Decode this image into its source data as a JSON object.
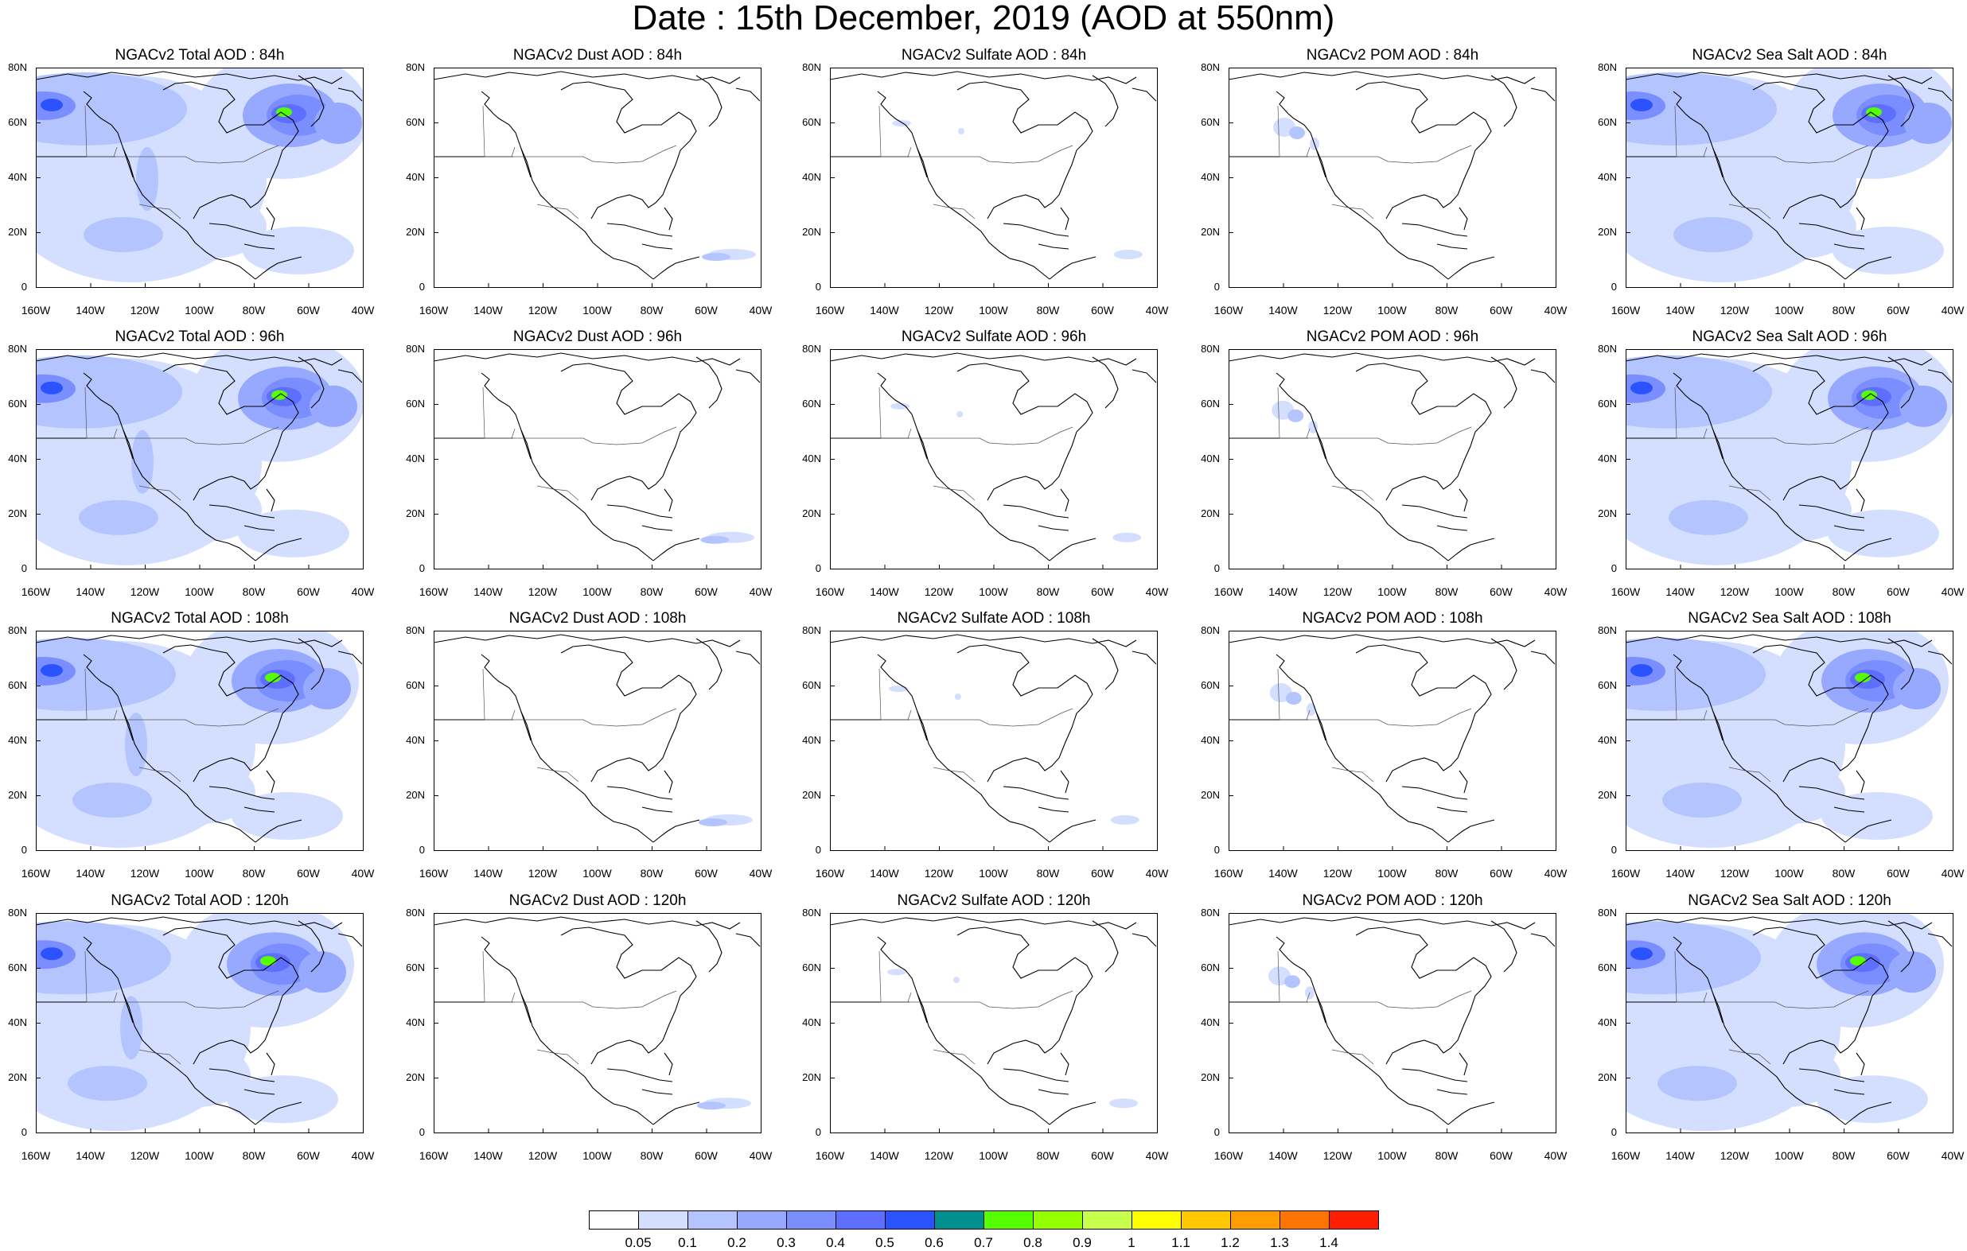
{
  "figure": {
    "title": "Date : 15th December, 2019 (AOD at 550nm)"
  },
  "panels": [
    {
      "title": "NGACv2 Total AOD : 84h",
      "species": "total",
      "hour": "84h"
    },
    {
      "title": "NGACv2 Dust AOD : 84h",
      "species": "dust",
      "hour": "84h"
    },
    {
      "title": "NGACv2 Sulfate AOD : 84h",
      "species": "sulfate",
      "hour": "84h"
    },
    {
      "title": "NGACv2 POM AOD : 84h",
      "species": "pom",
      "hour": "84h"
    },
    {
      "title": "NGACv2 Sea Salt AOD : 84h",
      "species": "seasalt",
      "hour": "84h"
    },
    {
      "title": "NGACv2 Total AOD : 96h",
      "species": "total",
      "hour": "96h"
    },
    {
      "title": "NGACv2 Dust AOD : 96h",
      "species": "dust",
      "hour": "96h"
    },
    {
      "title": "NGACv2 Sulfate AOD : 96h",
      "species": "sulfate",
      "hour": "96h"
    },
    {
      "title": "NGACv2 POM AOD : 96h",
      "species": "pom",
      "hour": "96h"
    },
    {
      "title": "NGACv2 Sea Salt AOD : 96h",
      "species": "seasalt",
      "hour": "96h"
    },
    {
      "title": "NGACv2 Total AOD : 108h",
      "species": "total",
      "hour": "108h"
    },
    {
      "title": "NGACv2 Dust AOD : 108h",
      "species": "dust",
      "hour": "108h"
    },
    {
      "title": "NGACv2 Sulfate AOD : 108h",
      "species": "sulfate",
      "hour": "108h"
    },
    {
      "title": "NGACv2 POM AOD : 108h",
      "species": "pom",
      "hour": "108h"
    },
    {
      "title": "NGACv2 Sea Salt AOD : 108h",
      "species": "seasalt",
      "hour": "108h"
    },
    {
      "title": "NGACv2 Total AOD : 120h",
      "species": "total",
      "hour": "120h"
    },
    {
      "title": "NGACv2 Dust AOD : 120h",
      "species": "dust",
      "hour": "120h"
    },
    {
      "title": "NGACv2 Sulfate AOD : 120h",
      "species": "sulfate",
      "hour": "120h"
    },
    {
      "title": "NGACv2 POM AOD : 120h",
      "species": "pom",
      "hour": "120h"
    },
    {
      "title": "NGACv2 Sea Salt  AOD : 120h",
      "species": "seasalt",
      "hour": "120h"
    }
  ],
  "axes": {
    "y_ticks": [
      "80N",
      "60N",
      "40N",
      "20N",
      "0"
    ],
    "x_ticks": [
      "160W",
      "140W",
      "120W",
      "100W",
      "80W",
      "60W",
      "40W"
    ],
    "lat_range": [
      0,
      80
    ],
    "lon_range": [
      -160,
      -40
    ]
  },
  "colorbar": {
    "labels": [
      "0.05",
      "0.1",
      "0.2",
      "0.3",
      "0.4",
      "0.5",
      "0.6",
      "0.7",
      "0.8",
      "0.9",
      "1",
      "1.1",
      "1.2",
      "1.3",
      "1.4"
    ],
    "colors": [
      "#ffffff",
      "#d4dfff",
      "#b4c4ff",
      "#97a9ff",
      "#7b8eff",
      "#5e6eff",
      "#2a53ff",
      "#009090",
      "#56ff00",
      "#95ff00",
      "#c8ff4a",
      "#ffff00",
      "#ffc800",
      "#ff9c00",
      "#ff7300",
      "#ff1e00"
    ]
  }
}
